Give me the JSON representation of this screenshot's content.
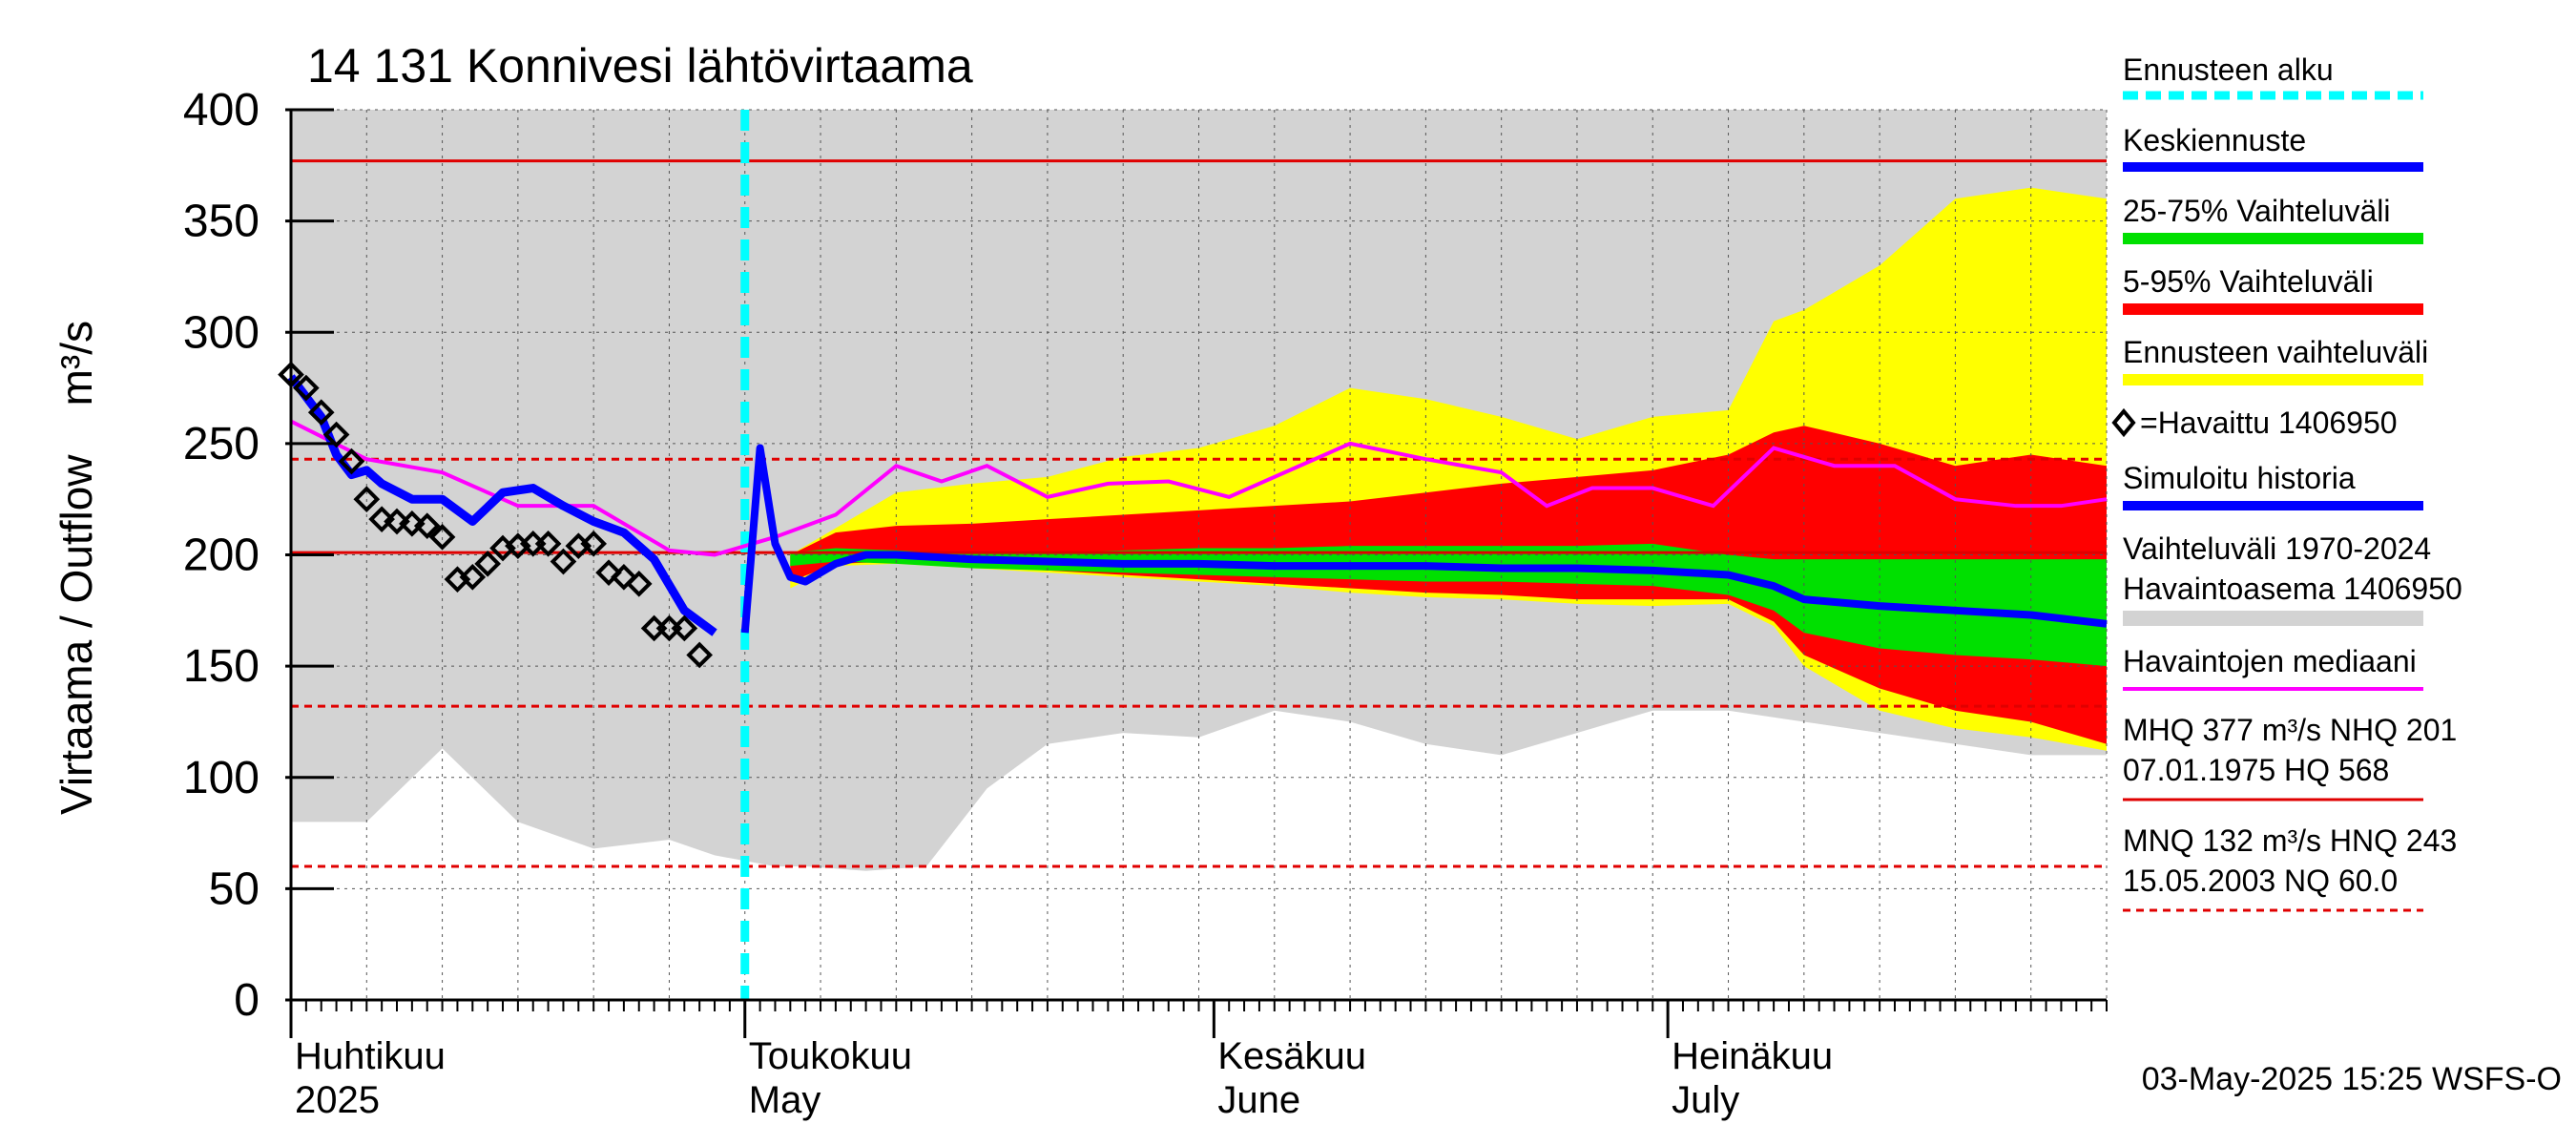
{
  "chart_data": {
    "type": "area",
    "title": "14 131 Konnivesi lähtövirtaama",
    "ylabel": "Virtaama / Outflow    m³/s",
    "ylim": [
      0,
      400
    ],
    "yticks": [
      0,
      50,
      100,
      150,
      200,
      250,
      300,
      350,
      400
    ],
    "day_range": [
      0,
      120
    ],
    "month_labels": [
      {
        "fi": "Huhtikuu",
        "en": "2025",
        "day": 0
      },
      {
        "fi": "Toukokuu",
        "en": "May",
        "day": 30
      },
      {
        "fi": "Kesäkuu",
        "en": "June",
        "day": 61
      },
      {
        "fi": "Heinäkuu",
        "en": "July",
        "day": 91
      }
    ],
    "forecast_start_day": 30,
    "reference_lines": [
      {
        "name": "MHQ",
        "value": 377,
        "style": "solid",
        "color": "#e00000"
      },
      {
        "name": "HNQ",
        "value": 243,
        "style": "dashed",
        "color": "#e00000"
      },
      {
        "name": "NHQ",
        "value": 201,
        "style": "solid",
        "color": "#e00000"
      },
      {
        "name": "MNQ",
        "value": 132,
        "style": "dashed",
        "color": "#e00000"
      },
      {
        "name": "NQ",
        "value": 60,
        "style": "dashed",
        "color": "#e00000"
      }
    ],
    "history_range": {
      "x": [
        0,
        5,
        10,
        15,
        20,
        25,
        28,
        32,
        34,
        38,
        42,
        46,
        50,
        55,
        60,
        65,
        70,
        75,
        80,
        85,
        90,
        95,
        100,
        105,
        110,
        115,
        120
      ],
      "low": [
        80,
        80,
        113,
        80,
        68,
        72,
        65,
        60,
        60,
        58,
        60,
        95,
        115,
        120,
        118,
        130,
        125,
        115,
        110,
        120,
        130,
        130,
        125,
        120,
        115,
        110,
        110
      ],
      "high": [
        400,
        400,
        400,
        400,
        400,
        400,
        400,
        400,
        400,
        400,
        400,
        400,
        400,
        400,
        400,
        400,
        400,
        400,
        400,
        400,
        400,
        400,
        400,
        400,
        400,
        400,
        400
      ]
    },
    "forecast_x": [
      33,
      36,
      40,
      45,
      50,
      55,
      60,
      65,
      70,
      75,
      80,
      85,
      90,
      95,
      98,
      100,
      105,
      110,
      115,
      120
    ],
    "band_5_95_x": [
      33,
      36,
      40,
      45,
      50,
      55,
      60,
      65,
      70,
      75,
      80,
      85,
      90,
      95,
      98,
      100,
      105,
      110,
      115,
      120
    ],
    "series": [
      {
        "name": "Ennusteen vaihteluväli",
        "color": "#ffff00",
        "low": [
          185,
          195,
          196,
          194,
          192,
          190,
          188,
          186,
          183,
          181,
          180,
          178,
          177,
          178,
          168,
          150,
          130,
          122,
          118,
          112
        ],
        "high": [
          200,
          212,
          228,
          232,
          235,
          244,
          248,
          258,
          275,
          270,
          262,
          252,
          262,
          265,
          305,
          310,
          330,
          360,
          365,
          360
        ]
      },
      {
        "name": "5-95% Vaihteluväli",
        "color": "#ff0000",
        "low": [
          188,
          196,
          197,
          195,
          193,
          191,
          189,
          187,
          185,
          183,
          182,
          180,
          180,
          180,
          170,
          155,
          140,
          130,
          125,
          115
        ],
        "high": [
          200,
          210,
          213,
          214,
          216,
          218,
          220,
          222,
          224,
          228,
          232,
          235,
          238,
          245,
          255,
          258,
          250,
          240,
          245,
          240
        ]
      },
      {
        "name": "25-75% Vaihteluväli",
        "color": "#00e000",
        "low": [
          195,
          197,
          196,
          194,
          193,
          192,
          191,
          190,
          189,
          188,
          188,
          187,
          186,
          182,
          175,
          165,
          158,
          155,
          153,
          150
        ],
        "high": [
          201,
          203,
          202,
          201,
          201,
          202,
          203,
          203,
          204,
          204,
          204,
          204,
          205,
          200,
          198,
          198,
          198,
          198,
          198,
          198
        ]
      },
      {
        "name": "Keskiennuste",
        "color": "#0000ff",
        "x": [
          30,
          31,
          32,
          33,
          34,
          36,
          38,
          40,
          45,
          50,
          55,
          60,
          65,
          70,
          75,
          80,
          85,
          90,
          95,
          98,
          100,
          105,
          110,
          115,
          120
        ],
        "values": [
          165,
          248,
          205,
          190,
          188,
          196,
          200,
          200,
          198,
          197,
          196,
          196,
          195,
          195,
          195,
          194,
          194,
          193,
          191,
          186,
          180,
          177,
          175,
          173,
          169
        ]
      },
      {
        "name": "Simuloitu historia",
        "color": "#0000ff",
        "x": [
          0,
          2,
          3,
          4,
          5,
          6,
          8,
          10,
          12,
          14,
          16,
          18,
          20,
          22,
          24,
          26,
          28
        ],
        "values": [
          280,
          262,
          245,
          236,
          238,
          232,
          225,
          225,
          215,
          228,
          230,
          222,
          215,
          210,
          198,
          175,
          165
        ]
      },
      {
        "name": "Havaintojen mediaani",
        "color": "#ff00ff",
        "x": [
          0,
          5,
          10,
          15,
          20,
          25,
          28,
          32,
          36,
          40,
          43,
          46,
          50,
          54,
          58,
          62,
          66,
          70,
          75,
          80,
          83,
          86,
          90,
          94,
          98,
          102,
          106,
          110,
          114,
          117,
          120
        ],
        "values": [
          260,
          243,
          237,
          222,
          222,
          202,
          200,
          208,
          218,
          240,
          233,
          240,
          226,
          232,
          233,
          226,
          238,
          250,
          243,
          237,
          222,
          230,
          230,
          222,
          248,
          240,
          240,
          225,
          222,
          222,
          225
        ]
      },
      {
        "name": "Havaittu 1406950",
        "color": "#000000",
        "x": [
          0,
          1,
          2,
          3,
          4,
          5,
          6,
          7,
          8,
          9,
          10,
          11,
          12,
          13,
          14,
          15,
          16,
          17,
          18,
          19,
          20,
          21,
          22,
          23,
          24,
          25,
          26,
          27
        ],
        "values": [
          281,
          275,
          264,
          254,
          242,
          225,
          216,
          215,
          214,
          213,
          208,
          189,
          190,
          196,
          203,
          204,
          205,
          205,
          197,
          204,
          205,
          192,
          190,
          187,
          167,
          167,
          167,
          155
        ]
      }
    ],
    "legend": [
      "Ennusteen alku",
      "Keskiennuste",
      "25-75% Vaihteluväli",
      "5-95% Vaihteluväli",
      "Ennusteen vaihteluväli",
      "=Havaittu 1406950",
      "Simuloitu historia",
      "Vaihteluväli 1970-2024",
      " Havaintoasema 1406950",
      "Havaintojen mediaani",
      "MHQ  377 m³/s NHQ  201",
      "07.01.1975 HQ  568",
      "MNQ  132 m³/s HNQ  243",
      "15.05.2003 NQ 60.0"
    ],
    "footer": "03-May-2025 15:25 WSFS-O",
    "colors": {
      "history_range": "#d3d3d3",
      "forecast_start": "#00ffff",
      "reference": "#e00000"
    }
  }
}
